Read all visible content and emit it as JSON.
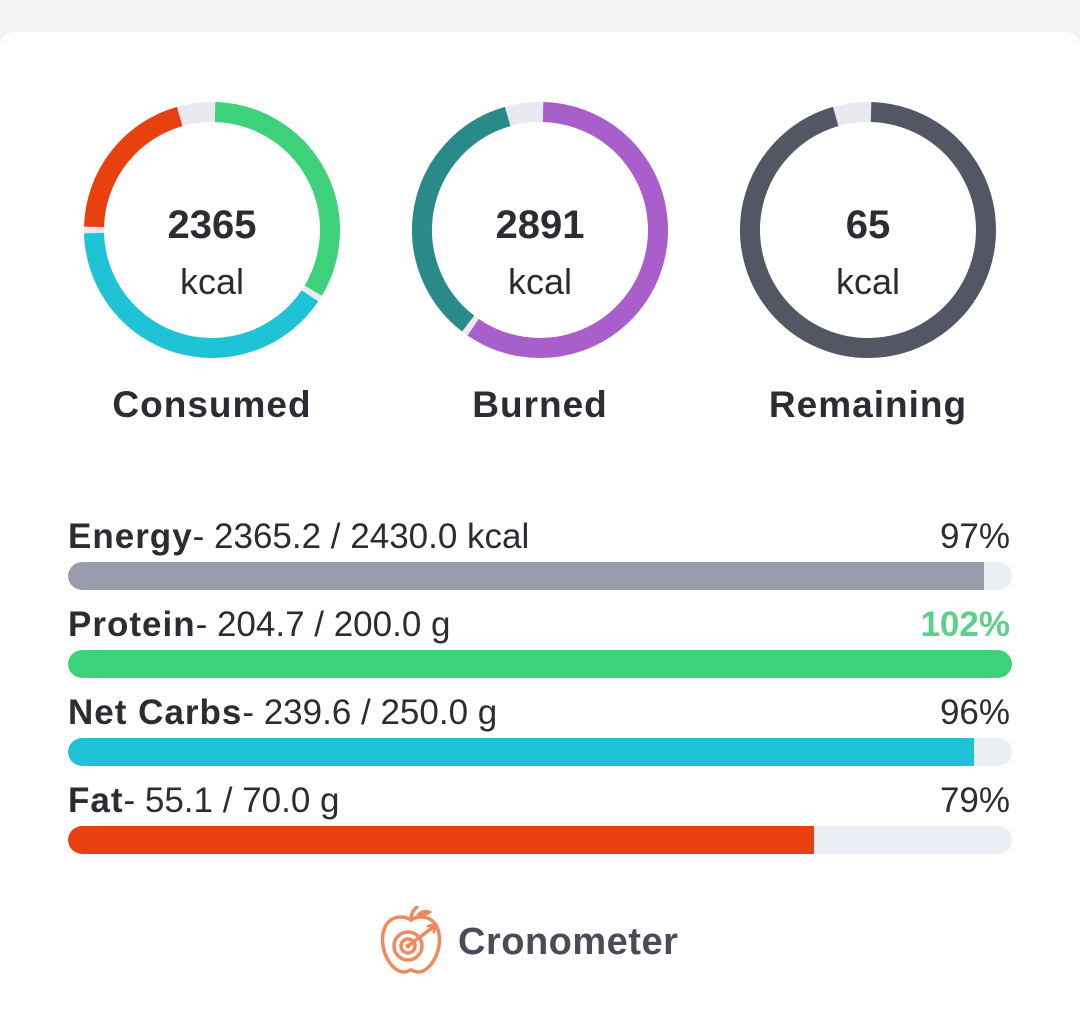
{
  "summary": {
    "rings": [
      {
        "id": "consumed",
        "value": "2365",
        "unit": "kcal",
        "label": "Consumed",
        "segments": [
          {
            "name": "protein",
            "color": "#3dd17a",
            "fraction": 0.34
          },
          {
            "name": "carbs",
            "color": "#1ec3d6",
            "fraction": 0.41
          },
          {
            "name": "fat",
            "color": "#e8410f",
            "fraction": 0.21
          }
        ]
      },
      {
        "id": "burned",
        "value": "2891",
        "unit": "kcal",
        "label": "Burned",
        "segments": [
          {
            "name": "activity",
            "color": "#a85fcc",
            "fraction": 0.6
          },
          {
            "name": "bmr",
            "color": "#2a8a8a",
            "fraction": 0.36
          }
        ]
      },
      {
        "id": "remaining",
        "value": "65",
        "unit": "kcal",
        "label": "Remaining",
        "segments": [
          {
            "name": "remaining",
            "color": "#535663",
            "fraction": 0.96
          }
        ]
      }
    ]
  },
  "targets": [
    {
      "name": "Energy",
      "amount": "- 2365.2 / 2430.0 kcal",
      "percent": "97%",
      "fraction": 0.97,
      "color": "#9a9cab",
      "percent_color": "#2b2d33"
    },
    {
      "name": "Protein",
      "amount": "- 204.7 / 200.0 g",
      "percent": "102%",
      "fraction": 1.0,
      "color": "#3dd17a",
      "percent_color": "#5ecf8c"
    },
    {
      "name": "Net Carbs",
      "amount": "- 239.6 / 250.0 g",
      "percent": "96%",
      "fraction": 0.96,
      "color": "#1ec3d6",
      "percent_color": "#2b2d33"
    },
    {
      "name": "Fat",
      "amount": "- 55.1 / 70.0 g",
      "percent": "79%",
      "fraction": 0.79,
      "color": "#e8410f",
      "percent_color": "#2b2d33"
    }
  ],
  "brand": {
    "name": "Cronometer",
    "icon": "cronometer-apple-logo-icon",
    "color": "#f08a5d"
  }
}
